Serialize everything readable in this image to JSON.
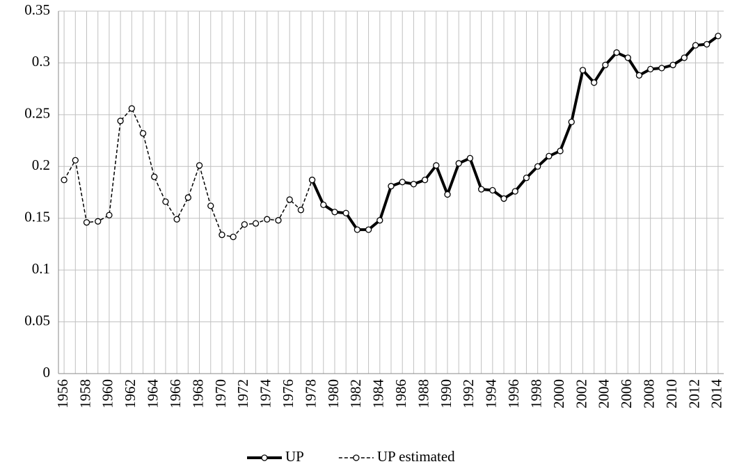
{
  "chart_data": {
    "type": "line",
    "categories": [
      "1956",
      null,
      "1958",
      null,
      "1960",
      null,
      "1962",
      null,
      "1964",
      null,
      "1966",
      null,
      "1968",
      null,
      "1970",
      null,
      "1972",
      null,
      "1974",
      null,
      "1976",
      null,
      "1978",
      null,
      "1980",
      null,
      "1982",
      null,
      "1984",
      null,
      "1986",
      null,
      "1988",
      null,
      "1990",
      null,
      "1992",
      null,
      "1994",
      null,
      "1996",
      null,
      "1998",
      null,
      "2000",
      null,
      "2002",
      null,
      "2004",
      null,
      "2006",
      null,
      "2008",
      null,
      "2010",
      null,
      "2012",
      null,
      "2014"
    ],
    "series": [
      {
        "name": "UP",
        "color": "#000000",
        "line_style": "solid",
        "line_width": 4,
        "values": [
          null,
          null,
          null,
          null,
          null,
          null,
          null,
          null,
          null,
          null,
          null,
          null,
          null,
          null,
          null,
          null,
          null,
          null,
          null,
          null,
          null,
          null,
          0.187,
          0.163,
          0.156,
          0.155,
          0.139,
          0.139,
          0.148,
          0.181,
          0.185,
          0.183,
          0.187,
          0.201,
          0.173,
          0.203,
          0.208,
          0.178,
          0.177,
          0.169,
          0.176,
          0.189,
          0.2,
          0.21,
          0.215,
          0.243,
          0.293,
          0.281,
          0.298,
          0.31,
          0.305,
          0.288,
          0.294,
          0.295,
          0.298,
          0.305,
          0.317,
          0.318,
          0.326
        ]
      },
      {
        "name": "UP estimated",
        "color": "#000000",
        "line_style": "dashed",
        "line_width": 1.5,
        "values": [
          0.187,
          0.206,
          0.146,
          0.147,
          0.153,
          0.244,
          0.256,
          0.232,
          0.19,
          0.166,
          0.149,
          0.17,
          0.201,
          0.162,
          0.134,
          0.132,
          0.144,
          0.145,
          0.149,
          0.148,
          0.168,
          0.158,
          0.187,
          null,
          null,
          null,
          null,
          null,
          null,
          null,
          null,
          null,
          null,
          null,
          null,
          null,
          null,
          null,
          null,
          null,
          null,
          null,
          null,
          null,
          null,
          null,
          null,
          null,
          null,
          null,
          null,
          null,
          null,
          null,
          null,
          null,
          null,
          null,
          null
        ]
      }
    ],
    "ylim": [
      0,
      0.35
    ],
    "yticks": [
      0,
      0.05,
      0.1,
      0.15,
      0.2,
      0.25,
      0.3,
      0.35
    ],
    "grid": true,
    "legend": "bottom"
  }
}
